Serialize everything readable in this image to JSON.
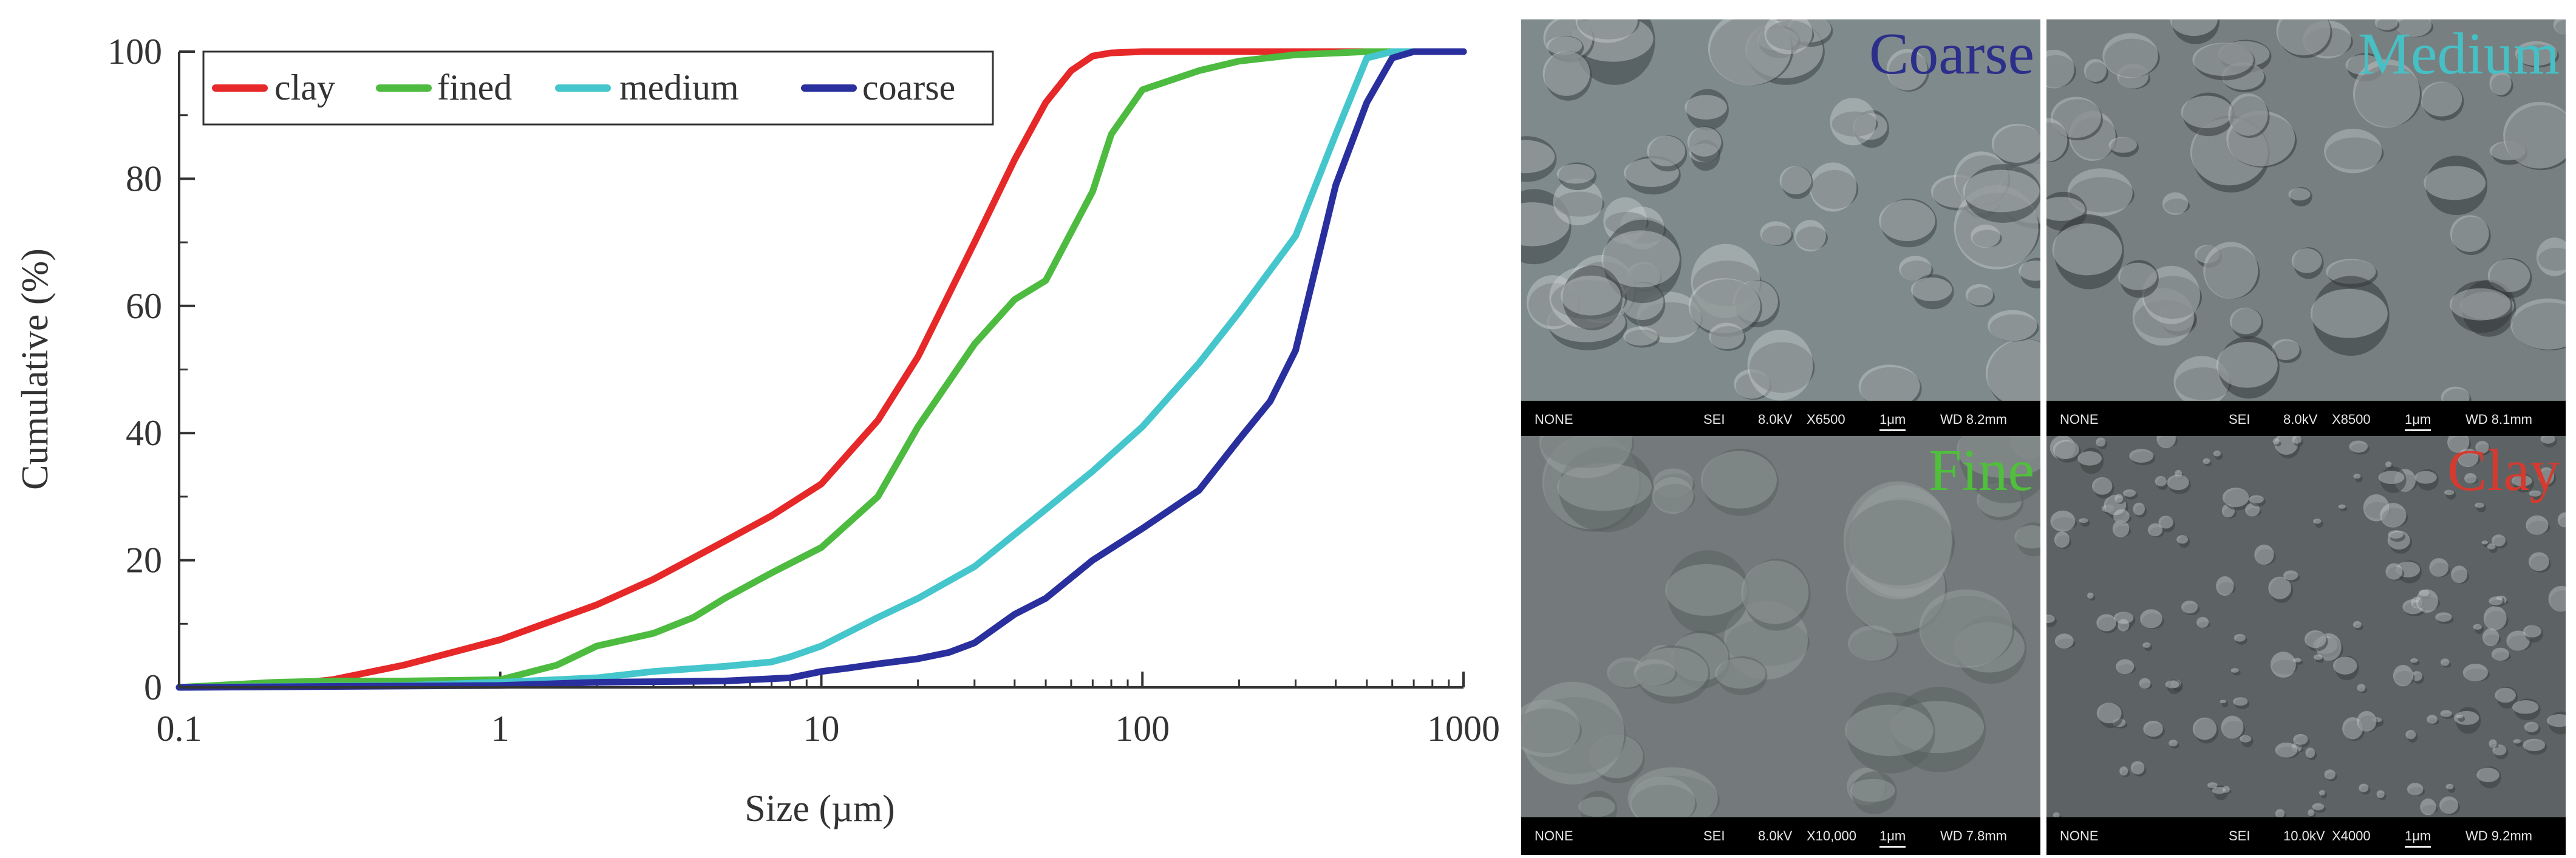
{
  "chart_data": {
    "type": "line",
    "xlabel": "Size (µm)",
    "ylabel": "Cumulative (%)",
    "xscale": "log",
    "xlim": [
      0.1,
      1000
    ],
    "ylim": [
      0,
      100
    ],
    "xticks": [
      "0.1",
      "1",
      "10",
      "100",
      "1000"
    ],
    "yticks": [
      "0",
      "20",
      "40",
      "60",
      "80",
      "100"
    ],
    "legend_position": "top-left",
    "grid": false,
    "series": [
      {
        "name": "clay",
        "color": "#e62828",
        "x": [
          0.1,
          0.2,
          0.3,
          0.5,
          1,
          2,
          3,
          5,
          7,
          10,
          15,
          20,
          30,
          40,
          50,
          60,
          70,
          80,
          100,
          1000
        ],
        "y": [
          0,
          0.3,
          1.2,
          3.5,
          7.5,
          13,
          17,
          23,
          27,
          32,
          42,
          52,
          70,
          83,
          92,
          97,
          99.3,
          99.8,
          100,
          100
        ]
      },
      {
        "name": "fined",
        "color": "#4dbb3f",
        "x": [
          0.1,
          0.2,
          0.3,
          0.5,
          1,
          1.5,
          2,
          3,
          4,
          5,
          7,
          8,
          10,
          15,
          20,
          30,
          40,
          50,
          70,
          80,
          100,
          150,
          200,
          300,
          500,
          1000
        ],
        "y": [
          0,
          0.8,
          1,
          1,
          1.2,
          3.5,
          6.5,
          8.5,
          11,
          14,
          18,
          19.5,
          22,
          30,
          41,
          54,
          61,
          64,
          78,
          87,
          94,
          97,
          98.5,
          99.5,
          100,
          100
        ]
      },
      {
        "name": "medium",
        "color": "#44c6cc",
        "x": [
          0.1,
          0.5,
          1,
          2,
          3,
          5,
          7,
          8,
          10,
          15,
          20,
          30,
          50,
          70,
          100,
          150,
          200,
          300,
          400,
          500,
          600,
          1000
        ],
        "y": [
          0,
          0.3,
          0.8,
          1.5,
          2.5,
          3.3,
          4,
          4.8,
          6.5,
          11,
          14,
          19,
          28,
          34,
          41,
          51,
          59,
          71,
          87,
          99,
          100,
          100
        ]
      },
      {
        "name": "coarse",
        "color": "#2a2f9e",
        "x": [
          0.1,
          1,
          2,
          5,
          8,
          10,
          12,
          15,
          20,
          25,
          30,
          40,
          50,
          70,
          100,
          150,
          200,
          250,
          300,
          400,
          500,
          600,
          700,
          1000
        ],
        "y": [
          0,
          0.3,
          0.8,
          1,
          1.5,
          2.5,
          3,
          3.7,
          4.5,
          5.5,
          7,
          11.5,
          14,
          20,
          25,
          31,
          39,
          45,
          53,
          79,
          92,
          99,
          100,
          100
        ]
      }
    ]
  },
  "sem_panels": [
    {
      "label": "Coarse",
      "label_color": "#2c2f8a",
      "detector": "NONE",
      "mode": "SEI",
      "kv": "8.0kV",
      "mag": "X6500",
      "scale": "1μm",
      "wd": "WD 8.2mm"
    },
    {
      "label": "Medium",
      "label_color": "#46c0c4",
      "detector": "NONE",
      "mode": "SEI",
      "kv": "8.0kV",
      "mag": "X8500",
      "scale": "1μm",
      "wd": "WD 8.1mm"
    },
    {
      "label": "Fine",
      "label_color": "#4fbf3c",
      "detector": "NONE",
      "mode": "SEI",
      "kv": "8.0kV",
      "mag": "X10,000",
      "scale": "1μm",
      "wd": "WD 7.8mm"
    },
    {
      "label": "Clay",
      "label_color": "#d63a2f",
      "detector": "NONE",
      "mode": "SEI",
      "kv": "10.0kV",
      "mag": "X4000",
      "scale": "1μm",
      "wd": "WD 9.2mm"
    }
  ]
}
